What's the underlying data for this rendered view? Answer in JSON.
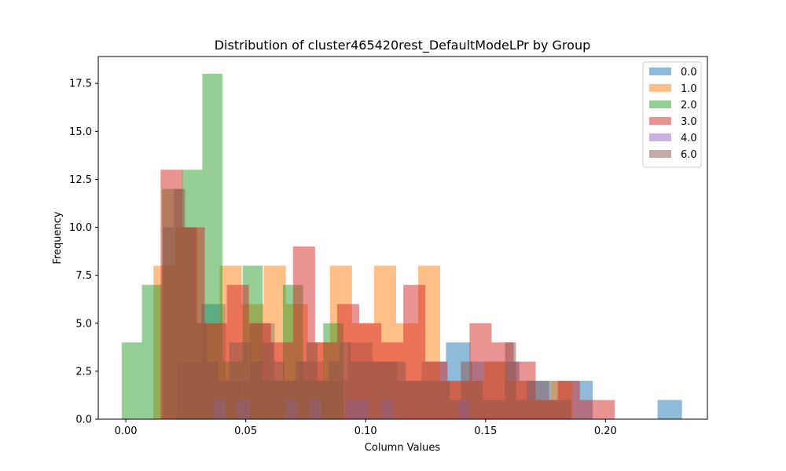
{
  "chart_data": {
    "type": "histogram",
    "title": "Distribution of cluster465420rest_DefaultModeLPr by Group",
    "xlabel": "Column Values",
    "ylabel": "Frequency",
    "xlim": [
      -0.0115,
      0.2425
    ],
    "ylim": [
      0,
      18.9
    ],
    "xticks": [
      0.0,
      0.05,
      0.1,
      0.15,
      0.2
    ],
    "xtick_labels": [
      "0.00",
      "0.05",
      "0.10",
      "0.15",
      "0.20"
    ],
    "yticks": [
      0,
      2.5,
      5,
      7.5,
      10,
      12.5,
      15,
      17.5
    ],
    "ytick_labels": [
      "0.0",
      "2.5",
      "5.0",
      "7.5",
      "10.0",
      "12.5",
      "15.0",
      "17.5"
    ],
    "legend_position": "top-right",
    "alpha": 0.5,
    "series": [
      {
        "name": "0.0",
        "color": "#1f77b4",
        "bins": [
          {
            "x0": 0.0213,
            "x1": 0.0315,
            "count": 3
          },
          {
            "x0": 0.0315,
            "x1": 0.0417,
            "count": 6
          },
          {
            "x0": 0.0417,
            "x1": 0.0519,
            "count": 2
          },
          {
            "x0": 0.0519,
            "x1": 0.0621,
            "count": 5
          },
          {
            "x0": 0.0621,
            "x1": 0.0723,
            "count": 2
          },
          {
            "x0": 0.0723,
            "x1": 0.0825,
            "count": 3
          },
          {
            "x0": 0.0825,
            "x1": 0.0927,
            "count": 2
          },
          {
            "x0": 0.0927,
            "x1": 0.1029,
            "count": 4
          },
          {
            "x0": 0.1029,
            "x1": 0.1131,
            "count": 3
          },
          {
            "x0": 0.1131,
            "x1": 0.1233,
            "count": 2
          },
          {
            "x0": 0.1233,
            "x1": 0.1335,
            "count": 3
          },
          {
            "x0": 0.1335,
            "x1": 0.1437,
            "count": 4
          },
          {
            "x0": 0.1437,
            "x1": 0.1539,
            "count": 3
          },
          {
            "x0": 0.1539,
            "x1": 0.1641,
            "count": 3
          },
          {
            "x0": 0.1641,
            "x1": 0.1743,
            "count": 2
          },
          {
            "x0": 0.1743,
            "x1": 0.1845,
            "count": 2
          },
          {
            "x0": 0.1845,
            "x1": 0.1947,
            "count": 2
          },
          {
            "x0": 0.2217,
            "x1": 0.2319,
            "count": 1
          }
        ]
      },
      {
        "name": "1.0",
        "color": "#ff7f0e",
        "bins": [
          {
            "x0": 0.0115,
            "x1": 0.0207,
            "count": 8
          },
          {
            "x0": 0.0207,
            "x1": 0.0299,
            "count": 10
          },
          {
            "x0": 0.0299,
            "x1": 0.0391,
            "count": 5
          },
          {
            "x0": 0.0391,
            "x1": 0.0483,
            "count": 8
          },
          {
            "x0": 0.0483,
            "x1": 0.0575,
            "count": 6
          },
          {
            "x0": 0.0575,
            "x1": 0.0667,
            "count": 8
          },
          {
            "x0": 0.0667,
            "x1": 0.0759,
            "count": 6
          },
          {
            "x0": 0.0759,
            "x1": 0.0851,
            "count": 4
          },
          {
            "x0": 0.0851,
            "x1": 0.0943,
            "count": 8
          },
          {
            "x0": 0.0943,
            "x1": 0.1035,
            "count": 5
          },
          {
            "x0": 0.1035,
            "x1": 0.1127,
            "count": 8
          },
          {
            "x0": 0.1127,
            "x1": 0.1219,
            "count": 5
          },
          {
            "x0": 0.1219,
            "x1": 0.1311,
            "count": 8
          },
          {
            "x0": 0.1311,
            "x1": 0.1403,
            "count": 2
          },
          {
            "x0": 0.1403,
            "x1": 0.1495,
            "count": 2
          },
          {
            "x0": 0.1495,
            "x1": 0.1587,
            "count": 3
          },
          {
            "x0": 0.1587,
            "x1": 0.1679,
            "count": 2
          },
          {
            "x0": 0.1679,
            "x1": 0.1771,
            "count": 1
          },
          {
            "x0": 0.1771,
            "x1": 0.1863,
            "count": 2
          }
        ]
      },
      {
        "name": "2.0",
        "color": "#2ca02c",
        "bins": [
          {
            "x0": -0.0017,
            "x1": 0.0067,
            "count": 4
          },
          {
            "x0": 0.0067,
            "x1": 0.0151,
            "count": 7
          },
          {
            "x0": 0.0151,
            "x1": 0.0235,
            "count": 12
          },
          {
            "x0": 0.0235,
            "x1": 0.0319,
            "count": 13
          },
          {
            "x0": 0.0319,
            "x1": 0.0403,
            "count": 18
          },
          {
            "x0": 0.0403,
            "x1": 0.0487,
            "count": 3
          },
          {
            "x0": 0.0487,
            "x1": 0.0571,
            "count": 8
          },
          {
            "x0": 0.0571,
            "x1": 0.0655,
            "count": 2
          },
          {
            "x0": 0.0655,
            "x1": 0.0739,
            "count": 7
          },
          {
            "x0": 0.0739,
            "x1": 0.0823,
            "count": 2
          },
          {
            "x0": 0.0823,
            "x1": 0.0907,
            "count": 5
          }
        ]
      },
      {
        "name": "3.0",
        "color": "#d62728",
        "bins": [
          {
            "x0": 0.0145,
            "x1": 0.0237,
            "count": 13
          },
          {
            "x0": 0.0237,
            "x1": 0.0329,
            "count": 10
          },
          {
            "x0": 0.0329,
            "x1": 0.0421,
            "count": 5
          },
          {
            "x0": 0.0421,
            "x1": 0.0513,
            "count": 7
          },
          {
            "x0": 0.0513,
            "x1": 0.0605,
            "count": 5
          },
          {
            "x0": 0.0605,
            "x1": 0.0697,
            "count": 4
          },
          {
            "x0": 0.0697,
            "x1": 0.0789,
            "count": 9
          },
          {
            "x0": 0.0789,
            "x1": 0.0881,
            "count": 4
          },
          {
            "x0": 0.0881,
            "x1": 0.0973,
            "count": 6
          },
          {
            "x0": 0.0973,
            "x1": 0.1065,
            "count": 5
          },
          {
            "x0": 0.1065,
            "x1": 0.1157,
            "count": 4
          },
          {
            "x0": 0.1157,
            "x1": 0.1249,
            "count": 7
          },
          {
            "x0": 0.1249,
            "x1": 0.1341,
            "count": 3
          },
          {
            "x0": 0.1341,
            "x1": 0.1433,
            "count": 2
          },
          {
            "x0": 0.1433,
            "x1": 0.1525,
            "count": 5
          },
          {
            "x0": 0.1525,
            "x1": 0.1617,
            "count": 4
          },
          {
            "x0": 0.1617,
            "x1": 0.1709,
            "count": 3
          },
          {
            "x0": 0.1709,
            "x1": 0.1801,
            "count": 1
          },
          {
            "x0": 0.1801,
            "x1": 0.1893,
            "count": 2
          },
          {
            "x0": 0.1893,
            "x1": 0.2039,
            "count": 1
          }
        ]
      },
      {
        "name": "4.0",
        "color": "#9467bd",
        "bins": [
          {
            "x0": 0.0365,
            "x1": 0.0415,
            "count": 1
          },
          {
            "x0": 0.0465,
            "x1": 0.0515,
            "count": 1
          },
          {
            "x0": 0.0665,
            "x1": 0.0715,
            "count": 1
          },
          {
            "x0": 0.0765,
            "x1": 0.0815,
            "count": 1
          },
          {
            "x0": 0.0915,
            "x1": 0.1015,
            "count": 1
          },
          {
            "x0": 0.1065,
            "x1": 0.1115,
            "count": 1
          },
          {
            "x0": 0.1385,
            "x1": 0.1435,
            "count": 1
          }
        ]
      },
      {
        "name": "6.0",
        "color": "#8c564b",
        "bins": [
          {
            "x0": 0.0155,
            "x1": 0.0201,
            "count": 10
          },
          {
            "x0": 0.0201,
            "x1": 0.0247,
            "count": 12
          },
          {
            "x0": 0.0247,
            "x1": 0.0293,
            "count": 10
          },
          {
            "x0": 0.0293,
            "x1": 0.0339,
            "count": 5
          },
          {
            "x0": 0.0339,
            "x1": 0.0385,
            "count": 3
          },
          {
            "x0": 0.0385,
            "x1": 0.0431,
            "count": 2
          },
          {
            "x0": 0.0431,
            "x1": 0.0477,
            "count": 4
          },
          {
            "x0": 0.0477,
            "x1": 0.0523,
            "count": 4
          },
          {
            "x0": 0.0523,
            "x1": 0.0569,
            "count": 3
          },
          {
            "x0": 0.0569,
            "x1": 0.0615,
            "count": 4
          },
          {
            "x0": 0.0615,
            "x1": 0.0661,
            "count": 3
          },
          {
            "x0": 0.0661,
            "x1": 0.0707,
            "count": 2
          },
          {
            "x0": 0.0707,
            "x1": 0.0753,
            "count": 3
          },
          {
            "x0": 0.0753,
            "x1": 0.0799,
            "count": 4
          },
          {
            "x0": 0.0799,
            "x1": 0.0845,
            "count": 2
          },
          {
            "x0": 0.0845,
            "x1": 0.0891,
            "count": 3
          },
          {
            "x0": 0.0891,
            "x1": 0.0937,
            "count": 4
          },
          {
            "x0": 0.0937,
            "x1": 0.0983,
            "count": 3
          },
          {
            "x0": 0.0983,
            "x1": 0.1029,
            "count": 3
          },
          {
            "x0": 0.1029,
            "x1": 0.1075,
            "count": 3
          },
          {
            "x0": 0.1075,
            "x1": 0.1121,
            "count": 3
          },
          {
            "x0": 0.1121,
            "x1": 0.1167,
            "count": 3
          },
          {
            "x0": 0.1167,
            "x1": 0.1213,
            "count": 2
          },
          {
            "x0": 0.1213,
            "x1": 0.1259,
            "count": 2
          },
          {
            "x0": 0.1259,
            "x1": 0.1305,
            "count": 2
          },
          {
            "x0": 0.1305,
            "x1": 0.1351,
            "count": 2
          },
          {
            "x0": 0.1351,
            "x1": 0.1397,
            "count": 1
          },
          {
            "x0": 0.1397,
            "x1": 0.1443,
            "count": 3
          },
          {
            "x0": 0.1443,
            "x1": 0.1489,
            "count": 2
          },
          {
            "x0": 0.1489,
            "x1": 0.1535,
            "count": 1
          },
          {
            "x0": 0.1535,
            "x1": 0.1581,
            "count": 1
          },
          {
            "x0": 0.1581,
            "x1": 0.1627,
            "count": 4
          },
          {
            "x0": 0.1627,
            "x1": 0.1673,
            "count": 1
          },
          {
            "x0": 0.1673,
            "x1": 0.1719,
            "count": 2
          },
          {
            "x0": 0.1719,
            "x1": 0.1765,
            "count": 2
          },
          {
            "x0": 0.1765,
            "x1": 0.1811,
            "count": 1
          },
          {
            "x0": 0.1811,
            "x1": 0.1857,
            "count": 1
          }
        ]
      }
    ]
  }
}
